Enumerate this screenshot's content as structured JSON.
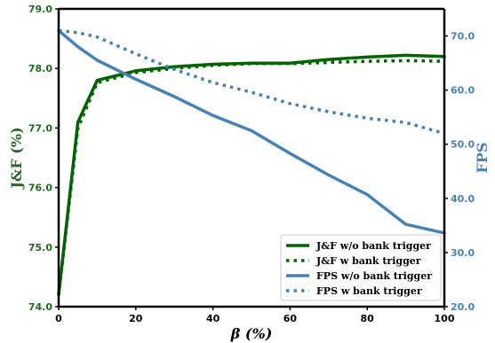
{
  "chart_data": {
    "type": "line",
    "title": "",
    "xlabel": "β (%)",
    "ylabel": "J&F (%)",
    "ylabel_right": "FPS",
    "xlim": [
      0,
      100
    ],
    "ylim": [
      74.0,
      79.0
    ],
    "ylim_right": [
      20.0,
      75.0
    ],
    "x_ticks": [
      "0",
      "20",
      "40",
      "60",
      "80",
      "100"
    ],
    "y_ticks": [
      "74.0",
      "75.0",
      "76.0",
      "77.0",
      "78.0",
      "79.0"
    ],
    "y_ticks_right": [
      "20.0",
      "30.0",
      "40.0",
      "50.0",
      "60.0",
      "70.0"
    ],
    "grid": false,
    "legend_position": "lower-right",
    "colors": {
      "jf": "#006400",
      "fps": "#4682b4"
    },
    "series": [
      {
        "name": "J&F w/o bank trigger",
        "axis": "left",
        "style": "solid",
        "x": [
          0,
          5,
          10,
          20,
          30,
          40,
          50,
          60,
          70,
          80,
          90,
          100
        ],
        "y": [
          74.2,
          77.1,
          77.8,
          77.96,
          78.03,
          78.07,
          78.09,
          78.09,
          78.15,
          78.19,
          78.22,
          78.2
        ]
      },
      {
        "name": "J&F w bank trigger",
        "axis": "left",
        "style": "dotted",
        "x": [
          0,
          5,
          10,
          20,
          30,
          40,
          50,
          60,
          70,
          80,
          90,
          100
        ],
        "y": [
          74.2,
          77.0,
          77.76,
          77.93,
          78.0,
          78.05,
          78.08,
          78.08,
          78.1,
          78.12,
          78.13,
          78.12
        ]
      },
      {
        "name": "FPS w/o bank trigger",
        "axis": "right",
        "style": "solid",
        "x": [
          0,
          5,
          10,
          20,
          30,
          40,
          50,
          60,
          70,
          80,
          90,
          100
        ],
        "y": [
          71.0,
          68.0,
          65.5,
          62.0,
          58.8,
          55.3,
          52.5,
          48.3,
          44.3,
          40.7,
          35.2,
          33.6
        ]
      },
      {
        "name": "FPS w bank trigger",
        "axis": "right",
        "style": "dotted",
        "x": [
          0,
          5,
          10,
          20,
          30,
          40,
          50,
          60,
          70,
          80,
          90,
          100
        ],
        "y": [
          71.0,
          70.6,
          69.8,
          66.7,
          63.8,
          61.4,
          59.6,
          57.5,
          56.0,
          54.8,
          54.0,
          52.0
        ]
      }
    ]
  }
}
